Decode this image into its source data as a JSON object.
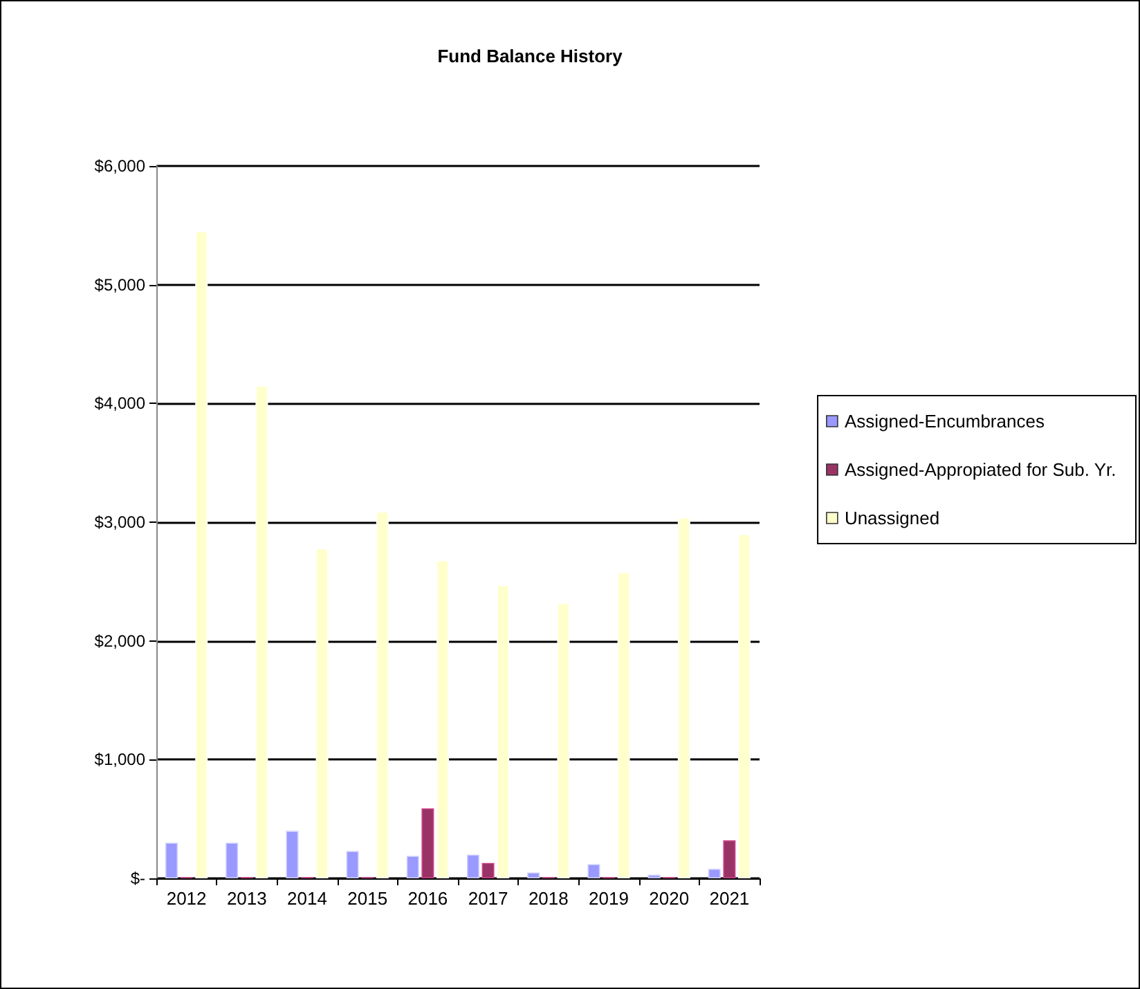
{
  "chart_data": {
    "type": "bar",
    "title": "Fund Balance History",
    "categories": [
      "2012",
      "2013",
      "2014",
      "2015",
      "2016",
      "2017",
      "2018",
      "2019",
      "2020",
      "2021"
    ],
    "series": [
      {
        "name": "Assigned-Encumbrances",
        "color": "#9999ff",
        "values": [
          300,
          300,
          400,
          230,
          190,
          200,
          50,
          120,
          30,
          80
        ]
      },
      {
        "name": "Assigned-Appropiated for Sub. Yr.",
        "color": "#993366",
        "values": [
          10,
          10,
          10,
          10,
          590,
          130,
          10,
          10,
          10,
          320
        ]
      },
      {
        "name": "Unassigned",
        "color": "#ffffcc",
        "values": [
          5450,
          4150,
          2780,
          3090,
          2680,
          2470,
          2320,
          2580,
          3040,
          2900
        ]
      }
    ],
    "ylim": [
      0,
      6000
    ],
    "yticks": [
      {
        "value": 0,
        "label": "$-"
      },
      {
        "value": 1000,
        "label": "$1,000"
      },
      {
        "value": 2000,
        "label": "$2,000"
      },
      {
        "value": 3000,
        "label": "$3,000"
      },
      {
        "value": 4000,
        "label": "$4,000"
      },
      {
        "value": 5000,
        "label": "$5,000"
      },
      {
        "value": 6000,
        "label": "$6,000"
      }
    ],
    "grid": "y",
    "legend": "right"
  }
}
